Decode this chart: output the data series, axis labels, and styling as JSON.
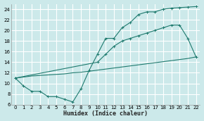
{
  "xlabel": "Humidex (Indice chaleur)",
  "bg_color": "#cce9ea",
  "grid_color": "#ffffff",
  "line_color": "#1e7a6e",
  "xlim": [
    -0.5,
    22.5
  ],
  "ylim": [
    6,
    25
  ],
  "xticks": [
    0,
    1,
    2,
    3,
    4,
    5,
    6,
    7,
    8,
    9,
    10,
    11,
    12,
    13,
    14,
    15,
    16,
    17,
    18,
    19,
    20,
    21,
    22
  ],
  "yticks": [
    6,
    8,
    10,
    12,
    14,
    16,
    18,
    20,
    22,
    24
  ],
  "line1_x": [
    0,
    1,
    2,
    3,
    4,
    5,
    6,
    7,
    8,
    9,
    10,
    11,
    12,
    13,
    14,
    15,
    16,
    17,
    18,
    19,
    20,
    21,
    22
  ],
  "line1_y": [
    11,
    9.5,
    8.5,
    8.5,
    7.5,
    7.5,
    7.0,
    6.5,
    9.0,
    12.5,
    15.5,
    18.5,
    18.5,
    20.5,
    21.5,
    23.0,
    23.5,
    23.5,
    24.0,
    24.2,
    24.3,
    24.4,
    24.5
  ],
  "line2_x": [
    0,
    1,
    2,
    3,
    4,
    5,
    6,
    7,
    8,
    9,
    10,
    11,
    12,
    13,
    14,
    15,
    16,
    17,
    18,
    19,
    20,
    21,
    22
  ],
  "line2_y": [
    11.0,
    11.2,
    11.4,
    11.5,
    11.6,
    11.7,
    11.8,
    12.0,
    12.1,
    12.3,
    12.5,
    12.7,
    12.9,
    13.1,
    13.3,
    13.5,
    13.7,
    13.9,
    14.1,
    14.3,
    14.5,
    14.7,
    15.0
  ],
  "line3_x": [
    0,
    10,
    11,
    12,
    13,
    14,
    15,
    16,
    17,
    18,
    19,
    20,
    21,
    22
  ],
  "line3_y": [
    11.0,
    14.0,
    15.5,
    17.0,
    18.0,
    18.5,
    19.0,
    19.5,
    20.0,
    20.5,
    21.0,
    21.0,
    18.5,
    15.0
  ]
}
